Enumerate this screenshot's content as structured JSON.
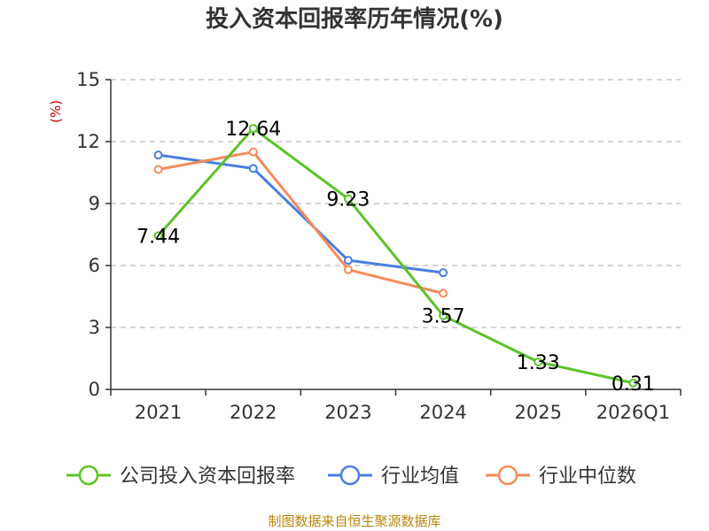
{
  "chart_data": {
    "type": "line",
    "title": "投入资本回报率历年情况(%)",
    "ylabel": "(%)",
    "xlabel": "",
    "ylim": [
      0,
      15
    ],
    "yticks": [
      0,
      3,
      6,
      9,
      12,
      15
    ],
    "categories": [
      "2021",
      "2022",
      "2023",
      "2024",
      "2025",
      "2026Q1"
    ],
    "series": [
      {
        "name": "公司投入资本回报率",
        "color": "#5cc328",
        "values": [
          7.44,
          12.64,
          9.23,
          3.57,
          1.33,
          0.31
        ],
        "labels": [
          "7.44",
          "12.64",
          "9.23",
          "3.57",
          "1.33",
          "0.31"
        ]
      },
      {
        "name": "行业均值",
        "color": "#4a7fe0",
        "values": [
          11.35,
          10.7,
          6.25,
          5.65,
          null,
          null
        ]
      },
      {
        "name": "行业中位数",
        "color": "#f58b5a",
        "values": [
          10.65,
          11.5,
          5.8,
          4.65,
          null,
          null
        ]
      }
    ],
    "grid": true,
    "legend": "bottom",
    "source": "制图数据来自恒生聚源数据库"
  }
}
